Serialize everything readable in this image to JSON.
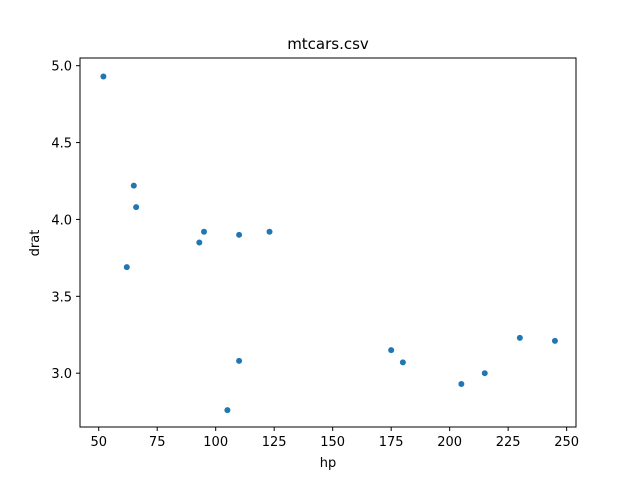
{
  "chart_data": {
    "type": "scatter",
    "title": "mtcars.csv",
    "xlabel": "hp",
    "ylabel": "drat",
    "xlim": [
      42,
      254
    ],
    "ylim": [
      2.65,
      5.05
    ],
    "xticks": [
      50,
      75,
      100,
      125,
      150,
      175,
      200,
      225,
      250
    ],
    "yticks": [
      3.0,
      3.5,
      4.0,
      4.5,
      5.0
    ],
    "xtick_labels": [
      "50",
      "75",
      "100",
      "125",
      "150",
      "175",
      "200",
      "225",
      "250"
    ],
    "ytick_labels": [
      "3.0",
      "3.5",
      "4.0",
      "4.5",
      "5.0"
    ],
    "grid": false,
    "marker_color": "#1f77b4",
    "points": [
      {
        "x": 52,
        "y": 4.93
      },
      {
        "x": 62,
        "y": 3.69
      },
      {
        "x": 65,
        "y": 4.22
      },
      {
        "x": 66,
        "y": 4.08
      },
      {
        "x": 93,
        "y": 3.85
      },
      {
        "x": 95,
        "y": 3.92
      },
      {
        "x": 105,
        "y": 2.76
      },
      {
        "x": 110,
        "y": 3.9
      },
      {
        "x": 110,
        "y": 3.08
      },
      {
        "x": 123,
        "y": 3.92
      },
      {
        "x": 175,
        "y": 3.15
      },
      {
        "x": 180,
        "y": 3.07
      },
      {
        "x": 205,
        "y": 2.93
      },
      {
        "x": 215,
        "y": 3.0
      },
      {
        "x": 230,
        "y": 3.23
      },
      {
        "x": 245,
        "y": 3.21
      }
    ]
  }
}
